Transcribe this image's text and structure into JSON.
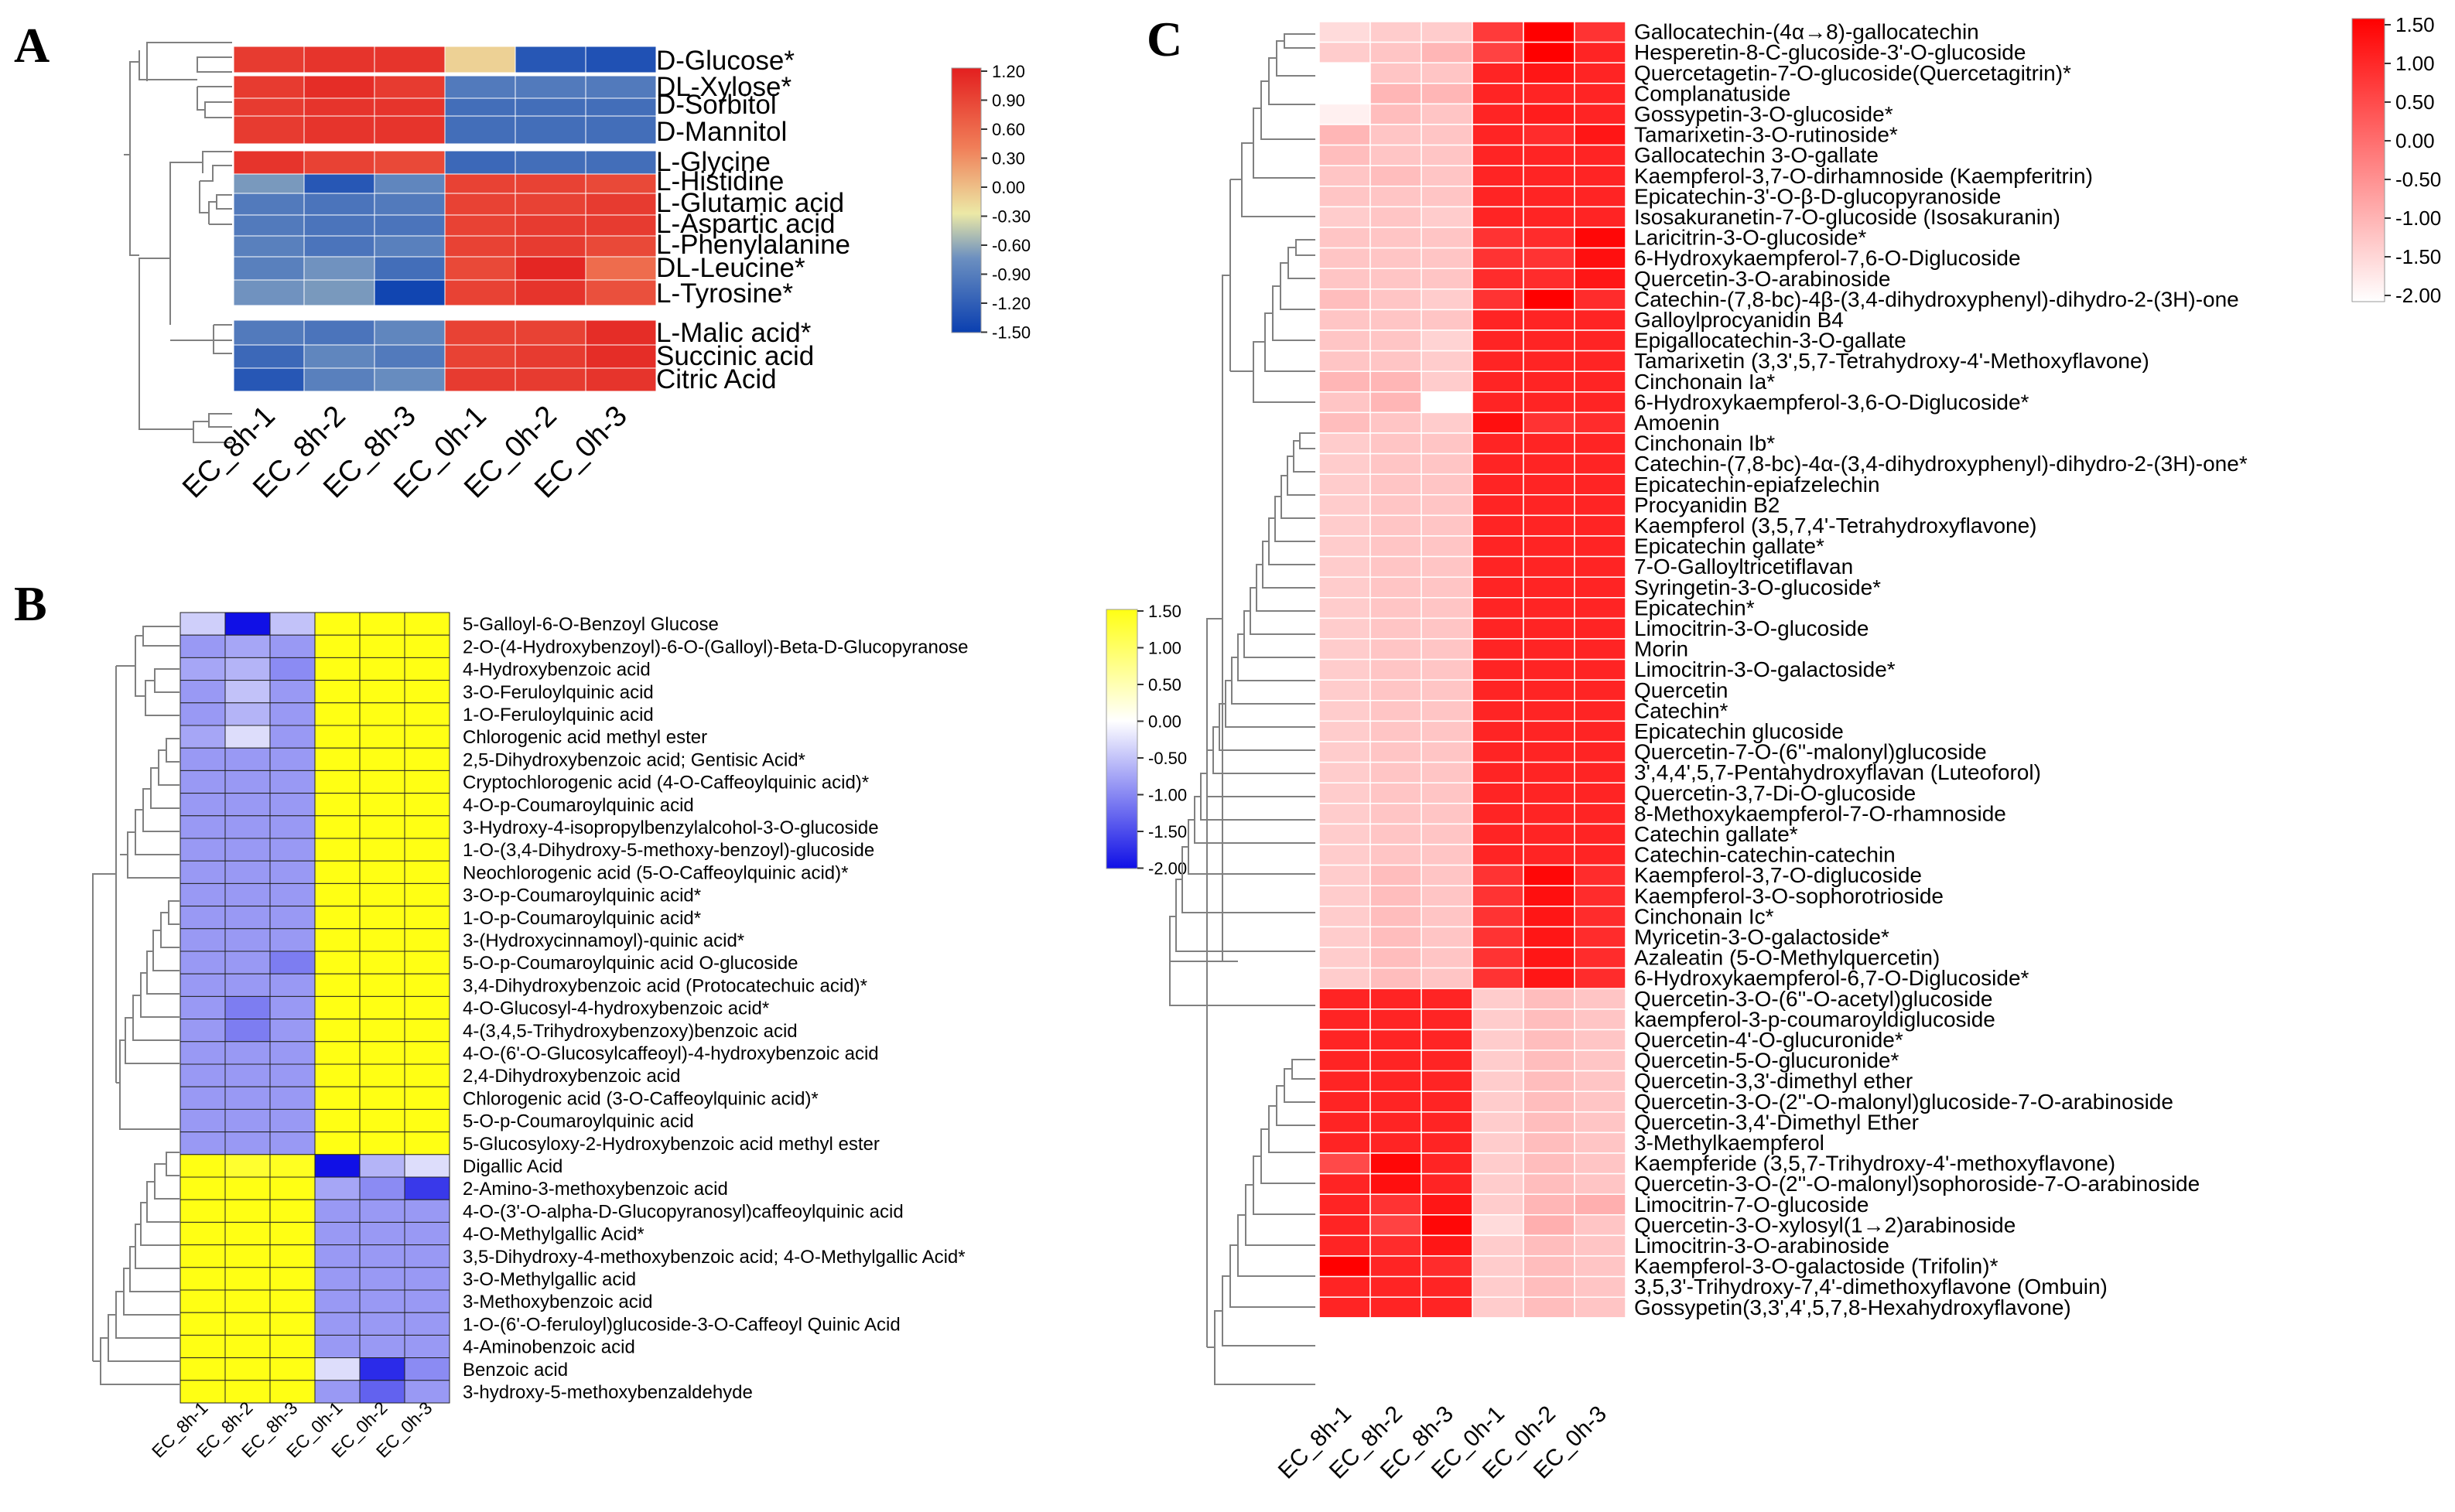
{
  "chart_data": [
    {
      "type": "heatmap",
      "panel_label": "A",
      "columns": [
        "EC_8h-1",
        "EC_8h-2",
        "EC_8h-3",
        "EC_0h-1",
        "EC_0h-2",
        "EC_0h-3"
      ],
      "rows": [
        "D-Glucose*",
        "DL-Xylose*",
        "D-Sorbitol",
        "D-Mannitol",
        "L-Glycine",
        "L-Histidine",
        "L-Glutamic acid",
        "L-Aspartic acid",
        "L-Phenylalanine",
        "DL-Leucine*",
        "L-Tyrosine*",
        "L-Malic acid*",
        "Succinic acid",
        "Citric Acid"
      ],
      "row_group_breaks": [
        4,
        11
      ],
      "values": [
        [
          1.0,
          1.05,
          1.05,
          0.0,
          -1.3,
          -1.35
        ],
        [
          1.0,
          1.1,
          1.0,
          -1.0,
          -1.0,
          -1.0
        ],
        [
          1.0,
          1.05,
          1.05,
          -1.1,
          -1.1,
          -1.1
        ],
        [
          1.0,
          1.05,
          1.05,
          -1.1,
          -1.1,
          -1.1
        ],
        [
          1.05,
          0.95,
          0.9,
          -1.15,
          -1.1,
          -1.1
        ],
        [
          -0.75,
          -1.3,
          -0.9,
          0.95,
          0.95,
          0.9
        ],
        [
          -1.0,
          -1.05,
          -1.0,
          0.95,
          0.95,
          1.0
        ],
        [
          -1.0,
          -1.05,
          -1.05,
          0.95,
          1.0,
          1.0
        ],
        [
          -0.95,
          -1.05,
          -0.95,
          0.95,
          1.0,
          0.9
        ],
        [
          -0.95,
          -0.8,
          -1.1,
          0.9,
          1.15,
          0.65
        ],
        [
          -0.8,
          -0.75,
          -1.45,
          0.95,
          1.05,
          0.85
        ],
        [
          -1.0,
          -1.05,
          -0.9,
          0.95,
          0.95,
          1.1
        ],
        [
          -1.15,
          -0.9,
          -1.0,
          0.95,
          1.0,
          1.1
        ],
        [
          -1.3,
          -0.95,
          -0.85,
          1.0,
          1.0,
          1.05
        ]
      ],
      "scale": {
        "min": -1.5,
        "max": 1.2,
        "colors": [
          "#0a3fb0",
          "#6b8fc0",
          "#ece9a6",
          "#f07e58",
          "#e31f1f"
        ],
        "ticks": [
          "1.20",
          "0.90",
          "0.60",
          "0.30",
          "0.00",
          "-0.30",
          "-0.60",
          "-0.90",
          "-1.20",
          "-1.50"
        ]
      }
    },
    {
      "type": "heatmap",
      "panel_label": "B",
      "columns": [
        "EC_8h-1",
        "EC_8h-2",
        "EC_8h-3",
        "EC_0h-1",
        "EC_0h-2",
        "EC_0h-3"
      ],
      "rows": [
        "5-Galloyl-6-O-Benzoyl Glucose",
        "2-O-(4-Hydroxybenzoyl)-6-O-(Galloyl)-Beta-D-Glucopyranose",
        "4-Hydroxybenzoic acid",
        "3-O-Feruloylquinic acid",
        "1-O-Feruloylquinic acid",
        "Chlorogenic acid methyl ester",
        "2,5-Dihydroxybenzoic acid; Gentisic Acid*",
        "Cryptochlorogenic acid (4-O-Caffeoylquinic acid)*",
        "4-O-p-Coumaroylquinic acid",
        "3-Hydroxy-4-isopropylbenzylalcohol-3-O-glucoside",
        "1-O-(3,4-Dihydroxy-5-methoxy-benzoyl)-glucoside",
        "Neochlorogenic acid (5-O-Caffeoylquinic acid)*",
        "3-O-p-Coumaroylquinic acid*",
        "1-O-p-Coumaroylquinic acid*",
        "3-(Hydroxycinnamoyl)-quinic acid*",
        "5-O-p-Coumaroylquinic acid O-glucoside",
        "3,4-Dihydroxybenzoic acid (Protocatechuic acid)*",
        "4-O-Glucosyl-4-hydroxybenzoic acid*",
        "4-(3,4,5-Trihydroxybenzoxy)benzoic acid",
        "4-O-(6'-O-Glucosylcaffeoyl)-4-hydroxybenzoic acid",
        "2,4-Dihydroxybenzoic acid",
        "Chlorogenic acid (3-O-Caffeoylquinic acid)*",
        "5-O-p-Coumaroylquinic acid",
        "5-Glucosyloxy-2-Hydroxybenzoic acid methyl ester",
        "Digallic Acid",
        "2-Amino-3-methoxybenzoic acid",
        "4-O-(3'-O-alpha-D-Glucopyranosyl)caffeoylquinic acid",
        "4-O-Methylgallic Acid*",
        "3,5-Dihydroxy-4-methoxybenzoic acid; 4-O-Methylgallic Acid*",
        "3-O-Methylgallic acid",
        "3-Methoxybenzoic acid",
        "1-O-(6'-O-feruloyl)glucoside-3-O-Caffeoyl Quinic Acid",
        "4-Aminobenzoic acid",
        "Benzoic acid",
        "3-hydroxy-5-methoxybenzaldehyde"
      ],
      "row_group_breaks": [
        24
      ],
      "top_values": [
        [
          -0.6,
          -2.0,
          -0.7,
          1.5,
          1.5,
          1.5
        ],
        [
          -1.0,
          -0.9,
          -1.0,
          1.5,
          1.5,
          1.5
        ],
        [
          -0.9,
          -0.8,
          -1.1,
          1.5,
          1.5,
          1.5
        ],
        [
          -1.0,
          -0.7,
          -1.0,
          1.5,
          1.5,
          1.5
        ],
        [
          -1.0,
          -0.8,
          -1.0,
          1.5,
          1.5,
          1.5
        ],
        [
          -0.9,
          -0.5,
          -1.0,
          1.5,
          1.5,
          1.5
        ],
        [
          -1.0,
          -1.0,
          -1.0,
          1.5,
          1.5,
          1.5
        ],
        [
          -1.0,
          -1.0,
          -1.0,
          1.5,
          1.5,
          1.5
        ],
        [
          -1.0,
          -1.0,
          -1.0,
          1.5,
          1.5,
          1.5
        ],
        [
          -1.0,
          -1.0,
          -1.0,
          1.5,
          1.5,
          1.5
        ],
        [
          -1.0,
          -1.0,
          -1.0,
          1.5,
          1.5,
          1.5
        ],
        [
          -1.0,
          -1.0,
          -1.0,
          1.5,
          1.5,
          1.5
        ],
        [
          -1.0,
          -1.0,
          -1.0,
          1.5,
          1.5,
          1.5
        ],
        [
          -1.0,
          -1.0,
          -1.0,
          1.5,
          1.5,
          1.5
        ],
        [
          -1.0,
          -1.0,
          -1.0,
          1.5,
          1.5,
          1.5
        ],
        [
          -1.0,
          -1.0,
          -1.2,
          1.5,
          1.5,
          1.5
        ],
        [
          -1.0,
          -1.0,
          -1.0,
          1.5,
          1.5,
          1.5
        ],
        [
          -1.0,
          -1.2,
          -1.0,
          1.5,
          1.5,
          1.5
        ],
        [
          -1.0,
          -1.2,
          -1.0,
          1.5,
          1.5,
          1.5
        ],
        [
          -1.0,
          -1.0,
          -1.0,
          1.5,
          1.5,
          1.5
        ],
        [
          -1.0,
          -1.0,
          -1.0,
          1.5,
          1.5,
          1.5
        ],
        [
          -1.0,
          -1.0,
          -1.0,
          1.5,
          1.5,
          1.5
        ],
        [
          -1.0,
          -1.0,
          -1.0,
          1.5,
          1.5,
          1.5
        ],
        [
          -1.0,
          -1.0,
          -1.0,
          1.5,
          1.5,
          1.5
        ]
      ],
      "bottom_values": [
        [
          1.5,
          1.3,
          1.4,
          -2.0,
          -0.8,
          -0.5
        ],
        [
          1.5,
          1.5,
          1.5,
          -0.9,
          -1.1,
          -1.7
        ],
        [
          1.5,
          1.5,
          1.5,
          -1.0,
          -1.0,
          -1.0
        ],
        [
          1.5,
          1.5,
          1.5,
          -1.0,
          -1.0,
          -1.0
        ],
        [
          1.5,
          1.5,
          1.5,
          -1.0,
          -1.0,
          -1.0
        ],
        [
          1.5,
          1.5,
          1.5,
          -1.0,
          -1.0,
          -1.0
        ],
        [
          1.5,
          1.5,
          1.5,
          -1.0,
          -1.0,
          -1.0
        ],
        [
          1.5,
          1.5,
          1.5,
          -1.0,
          -1.0,
          -1.0
        ],
        [
          1.5,
          1.5,
          1.5,
          -1.0,
          -1.0,
          -1.0
        ],
        [
          1.5,
          1.5,
          1.5,
          -0.5,
          -1.8,
          -1.1
        ],
        [
          1.5,
          1.5,
          1.5,
          -1.0,
          -1.4,
          -1.0
        ]
      ],
      "scale": {
        "min": -2.0,
        "max": 1.5,
        "colors": [
          "#1010e6",
          "#ffffff",
          "#ffff14"
        ],
        "ticks": [
          "1.50",
          "1.00",
          "0.50",
          "0.00",
          "-0.50",
          "-1.00",
          "-1.50",
          "-2.00"
        ]
      }
    },
    {
      "type": "heatmap",
      "panel_label": "C",
      "columns": [
        "EC_8h-1",
        "EC_8h-2",
        "EC_8h-3",
        "EC_0h-1",
        "EC_0h-2",
        "EC_0h-3"
      ],
      "rows": [
        "Gallocatechin-(4α→8)-gallocatechin",
        "Hesperetin-8-C-glucoside-3'-O-glucoside",
        "Quercetagetin-7-O-glucoside(Quercetagitrin)*",
        "Complanatuside",
        "Gossypetin-3-O-glucoside*",
        "Tamarixetin-3-O-rutinoside*",
        "Gallocatechin 3-O-gallate",
        "Kaempferol-3,7-O-dirhamnoside (Kaempferitrin)",
        "Epicatechin-3'-O-β-D-glucopyranoside",
        "Isosakuranetin-7-O-glucoside (Isosakuranin)",
        "Laricitrin-3-O-glucoside*",
        "6-Hydroxykaempferol-7,6-O-Diglucoside",
        "Quercetin-3-O-arabinoside",
        "Catechin-(7,8-bc)-4β-(3,4-dihydroxyphenyl)-dihydro-2-(3H)-one",
        "Galloylprocyanidin B4",
        "Epigallocatechin-3-O-gallate",
        "Tamarixetin (3,3',5,7-Tetrahydroxy-4'-Methoxyflavone)",
        "Cinchonain Ia*",
        "6-Hydroxykaempferol-3,6-O-Diglucoside*",
        "Amoenin",
        "Cinchonain Ib*",
        "Catechin-(7,8-bc)-4α-(3,4-dihydroxyphenyl)-dihydro-2-(3H)-one*",
        "Epicatechin-epiafzelechin",
        "Procyanidin B2",
        "Kaempferol (3,5,7,4'-Tetrahydroxyflavone)",
        "Epicatechin gallate*",
        "7-O-Galloyltricetiflavan",
        "Syringetin-3-O-glucoside*",
        "Epicatechin*",
        "Limocitrin-3-O-glucoside",
        "Morin",
        "Limocitrin-3-O-galactoside*",
        "Quercetin",
        "Catechin*",
        "Epicatechin glucoside",
        "Quercetin-7-O-(6''-malonyl)glucoside",
        "3',4,4',5,7-Pentahydroxyflavan (Luteoforol)",
        "Quercetin-3,7-Di-O-glucoside",
        "8-Methoxykaempferol-7-O-rhamnoside",
        "Catechin gallate*",
        "Catechin-catechin-catechin",
        "Kaempferol-3,7-O-diglucoside",
        "Kaempferol-3-O-sophorotrioside",
        "Cinchonain Ic*",
        "Myricetin-3-O-galactoside*",
        "Azaleatin (5-O-Methylquercetin)",
        "6-Hydroxykaempferol-6,7-O-Diglucoside*",
        "Quercetin-3-O-(6''-O-acetyl)glucoside",
        "kaempferol-3-p-coumaroyldiglucoside",
        "Quercetin-4'-O-glucuronide*",
        "Quercetin-5-O-glucuronide*",
        "Quercetin-3,3'-dimethyl ether",
        "Quercetin-3-O-(2''-O-malonyl)glucoside-7-O-arabinoside",
        "Quercetin-3,4'-Dimethyl Ether",
        "3-Methylkaempferol",
        "Kaempferide (3,5,7-Trihydroxy-4'-methoxyflavone)",
        "Quercetin-3-O-(2''-O-malonyl)sophoroside-7-O-arabinoside",
        "Limocitrin-7-O-glucoside",
        "Quercetin-3-O-xylosyl(1→2)arabinoside",
        "Limocitrin-3-O-arabinoside",
        "Kaempferol-3-O-galactoside (Trifolin)*",
        "3,5,3'-Trihydroxy-7,4'-dimethoxyflavone (Ombuin)",
        "Gossypetin(3,3',4',5,7,8-Hexahydroxyflavone)"
      ],
      "row_group_breaks": [
        47
      ],
      "top_values": [
        [
          -1.5,
          -1.3,
          -1.3,
          0.7,
          1.5,
          0.8
        ],
        [
          -1.3,
          -1.2,
          -1.0,
          0.6,
          1.5,
          1.0
        ],
        [
          -2.0,
          -1.2,
          -1.2,
          1.0,
          1.2,
          1.0
        ],
        [
          -2.0,
          -1.0,
          -1.0,
          1.0,
          1.0,
          1.0
        ],
        [
          -1.8,
          -1.1,
          -1.2,
          1.0,
          1.1,
          1.0
        ],
        [
          -1.0,
          -1.2,
          -1.2,
          1.0,
          0.9,
          1.2
        ],
        [
          -1.1,
          -1.2,
          -1.2,
          1.0,
          1.0,
          1.0
        ],
        [
          -1.2,
          -1.1,
          -1.2,
          1.0,
          1.0,
          1.0
        ],
        [
          -1.2,
          -1.2,
          -1.2,
          1.0,
          1.0,
          1.0
        ],
        [
          -1.3,
          -1.2,
          -1.3,
          1.0,
          1.0,
          1.0
        ],
        [
          -1.2,
          -1.2,
          -1.2,
          0.8,
          0.9,
          1.4
        ],
        [
          -1.2,
          -1.2,
          -1.2,
          0.8,
          0.8,
          1.3
        ],
        [
          -1.2,
          -1.2,
          -1.2,
          0.9,
          0.9,
          1.2
        ],
        [
          -1.1,
          -1.2,
          -1.3,
          0.8,
          1.5,
          0.9
        ],
        [
          -1.2,
          -1.2,
          -1.2,
          1.0,
          1.0,
          1.0
        ],
        [
          -1.2,
          -1.2,
          -1.4,
          1.0,
          1.0,
          1.0
        ],
        [
          -1.2,
          -1.2,
          -1.3,
          1.0,
          1.0,
          1.0
        ],
        [
          -1.0,
          -1.0,
          -1.3,
          1.0,
          1.0,
          1.0
        ],
        [
          -1.2,
          -1.0,
          -2.0,
          1.0,
          1.0,
          1.0
        ],
        [
          -1.1,
          -1.2,
          -1.3,
          1.3,
          0.8,
          0.9
        ],
        [
          -1.3,
          -1.2,
          -1.2,
          1.0,
          1.0,
          1.0
        ],
        [
          -1.3,
          -1.2,
          -1.2,
          1.0,
          1.0,
          1.0
        ],
        [
          -1.3,
          -1.2,
          -1.2,
          1.0,
          1.0,
          1.0
        ],
        [
          -1.3,
          -1.2,
          -1.2,
          1.0,
          1.0,
          1.0
        ],
        [
          -1.3,
          -1.2,
          -1.2,
          1.0,
          1.0,
          1.0
        ],
        [
          -1.3,
          -1.2,
          -1.2,
          1.0,
          1.0,
          1.0
        ],
        [
          -1.3,
          -1.2,
          -1.2,
          1.0,
          1.0,
          1.0
        ],
        [
          -1.3,
          -1.2,
          -1.2,
          1.0,
          1.0,
          1.0
        ],
        [
          -1.3,
          -1.2,
          -1.2,
          1.0,
          1.0,
          1.0
        ],
        [
          -1.3,
          -1.2,
          -1.2,
          1.0,
          1.0,
          1.0
        ],
        [
          -1.3,
          -1.2,
          -1.2,
          1.0,
          1.0,
          1.0
        ],
        [
          -1.3,
          -1.2,
          -1.2,
          1.0,
          1.0,
          1.0
        ],
        [
          -1.3,
          -1.2,
          -1.2,
          1.0,
          1.0,
          1.0
        ],
        [
          -1.3,
          -1.2,
          -1.2,
          1.0,
          1.0,
          1.0
        ],
        [
          -1.3,
          -1.2,
          -1.2,
          1.0,
          1.0,
          1.0
        ],
        [
          -1.3,
          -1.2,
          -1.2,
          1.0,
          1.0,
          1.0
        ],
        [
          -1.3,
          -1.2,
          -1.2,
          1.0,
          1.0,
          1.0
        ],
        [
          -1.3,
          -1.2,
          -1.2,
          1.0,
          1.0,
          1.0
        ],
        [
          -1.3,
          -1.2,
          -1.2,
          1.0,
          1.0,
          1.0
        ],
        [
          -1.3,
          -1.2,
          -1.2,
          1.0,
          1.0,
          1.0
        ],
        [
          -1.3,
          -1.2,
          -1.2,
          1.0,
          1.0,
          1.0
        ],
        [
          -1.3,
          -1.1,
          -1.2,
          0.8,
          1.4,
          0.9
        ],
        [
          -1.3,
          -1.1,
          -1.2,
          0.8,
          1.3,
          0.9
        ],
        [
          -1.3,
          -1.1,
          -1.2,
          0.8,
          1.2,
          0.9
        ],
        [
          -1.3,
          -1.1,
          -1.2,
          0.8,
          1.2,
          0.9
        ],
        [
          -1.3,
          -1.1,
          -1.2,
          0.8,
          1.2,
          0.9
        ],
        [
          -1.3,
          -1.1,
          -1.2,
          0.8,
          1.2,
          0.9
        ]
      ],
      "bottom_values": [
        [
          1.0,
          1.0,
          1.0,
          -1.3,
          -1.1,
          -1.2
        ],
        [
          1.0,
          1.0,
          1.0,
          -1.3,
          -1.1,
          -1.2
        ],
        [
          1.0,
          1.0,
          1.0,
          -1.3,
          -1.1,
          -1.2
        ],
        [
          1.0,
          1.0,
          1.0,
          -1.3,
          -1.1,
          -1.2
        ],
        [
          1.0,
          1.0,
          1.0,
          -1.3,
          -1.1,
          -1.2
        ],
        [
          1.0,
          1.0,
          1.0,
          -1.3,
          -1.1,
          -1.2
        ],
        [
          1.0,
          1.0,
          1.0,
          -1.3,
          -1.1,
          -1.2
        ],
        [
          1.0,
          1.0,
          1.0,
          -1.3,
          -1.1,
          -1.2
        ],
        [
          0.5,
          1.4,
          1.0,
          -1.3,
          -1.1,
          -1.2
        ],
        [
          1.0,
          1.3,
          1.0,
          -1.3,
          -1.1,
          -1.2
        ],
        [
          1.0,
          0.8,
          1.2,
          -1.3,
          -1.0,
          -0.9
        ],
        [
          1.0,
          0.6,
          1.4,
          -1.5,
          -0.9,
          -1.2
        ],
        [
          1.0,
          0.9,
          1.2,
          -1.3,
          -1.1,
          -1.2
        ],
        [
          1.5,
          1.0,
          0.9,
          -1.3,
          -1.1,
          -1.2
        ],
        [
          1.0,
          1.0,
          1.0,
          -1.3,
          -1.1,
          -1.2
        ],
        [
          1.0,
          1.0,
          1.0,
          -1.3,
          -1.1,
          -1.2
        ]
      ],
      "scale": {
        "min": -2.0,
        "max": 1.5,
        "colors": [
          "#ffffff",
          "#ff0000"
        ],
        "ticks": [
          "1.50",
          "1.00",
          "0.50",
          "0.00",
          "-0.50",
          "-1.00",
          "-1.50",
          "-2.00"
        ]
      }
    }
  ]
}
